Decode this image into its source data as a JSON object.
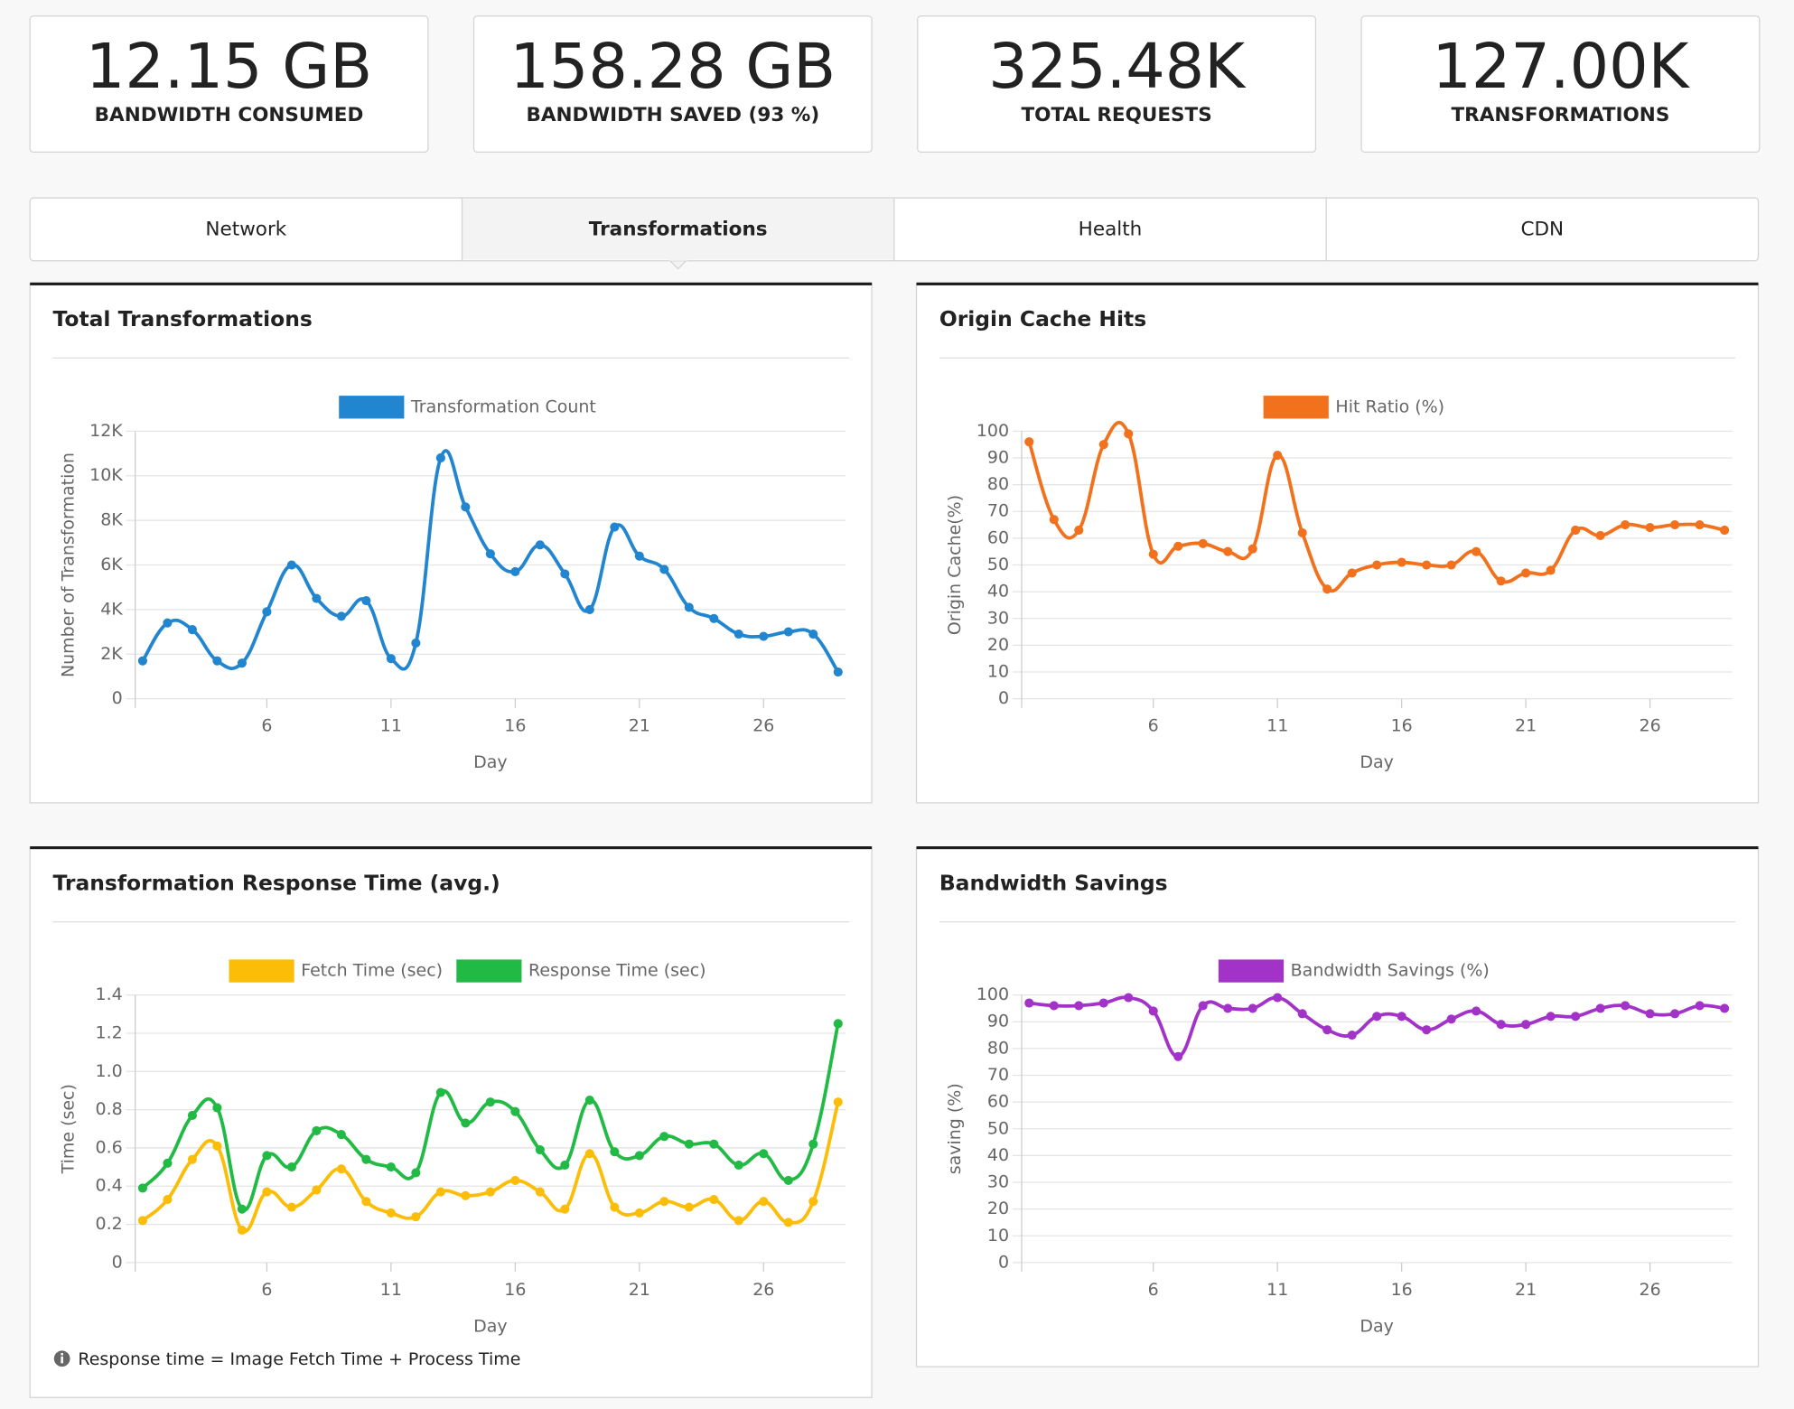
{
  "stats": [
    {
      "value": "12.15 GB",
      "label": "BANDWIDTH CONSUMED"
    },
    {
      "value": "158.28 GB",
      "label": "BANDWIDTH SAVED (93 %)"
    },
    {
      "value": "325.48K",
      "label": "TOTAL REQUESTS"
    },
    {
      "value": "127.00K",
      "label": "TRANSFORMATIONS"
    }
  ],
  "tabs": [
    "Network",
    "Transformations",
    "Health",
    "CDN"
  ],
  "active_tab": 1,
  "chart_data": [
    {
      "type": "line",
      "title": "Total Transformations",
      "x_label": "Day",
      "y_label": "Number of Transformation",
      "x": [
        1,
        2,
        3,
        4,
        5,
        6,
        7,
        8,
        9,
        10,
        11,
        12,
        13,
        14,
        15,
        16,
        17,
        18,
        19,
        20,
        21,
        22,
        23,
        24,
        25,
        26,
        27,
        28,
        29
      ],
      "xlim": [
        0.7,
        29.3
      ],
      "xticks": [
        6,
        11,
        16,
        21,
        26
      ],
      "ylim": [
        0,
        12000
      ],
      "yticks": [
        0,
        {
          "value": 2000,
          "label": "2K"
        },
        {
          "value": 4000,
          "label": "4K"
        },
        {
          "value": 6000,
          "label": "6K"
        },
        {
          "value": 8000,
          "label": "8K"
        },
        {
          "value": 10000,
          "label": "10K"
        },
        {
          "value": 12000,
          "label": "12K"
        }
      ],
      "grid": true,
      "series": [
        {
          "name": "Transformation Count",
          "color": "#2185d0",
          "values": [
            1700,
            3400,
            3100,
            1700,
            1600,
            3900,
            6000,
            4500,
            3700,
            4400,
            1800,
            2500,
            10800,
            8600,
            6500,
            5700,
            6900,
            5600,
            4000,
            7700,
            6400,
            5800,
            4100,
            3600,
            2900,
            2800,
            3000,
            2900,
            1200
          ]
        }
      ]
    },
    {
      "type": "line",
      "title": "Origin Cache Hits",
      "x_label": "Day",
      "y_label": "Origin Cache(%)",
      "x": [
        1,
        2,
        3,
        4,
        5,
        6,
        7,
        8,
        9,
        10,
        11,
        12,
        13,
        14,
        15,
        16,
        17,
        18,
        19,
        20,
        21,
        22,
        23,
        24,
        25,
        26,
        27,
        28,
        29
      ],
      "xlim": [
        0.7,
        29.3
      ],
      "xticks": [
        6,
        11,
        16,
        21,
        26
      ],
      "ylim": [
        0,
        100
      ],
      "yticks": [
        0,
        10,
        20,
        30,
        40,
        50,
        60,
        70,
        80,
        90,
        100
      ],
      "grid": true,
      "series": [
        {
          "name": "Hit Ratio (%)",
          "color": "#f2711c",
          "values": [
            96,
            67,
            63,
            95,
            99,
            54,
            57,
            58,
            55,
            56,
            91,
            62,
            41,
            47,
            50,
            51,
            50,
            50,
            55,
            44,
            47,
            48,
            63,
            61,
            65,
            64,
            65,
            65,
            63
          ]
        }
      ]
    },
    {
      "type": "line",
      "title": "Transformation Response Time (avg.)",
      "x_label": "Day",
      "y_label": "Time (sec)",
      "x": [
        1,
        2,
        3,
        4,
        5,
        6,
        7,
        8,
        9,
        10,
        11,
        12,
        13,
        14,
        15,
        16,
        17,
        18,
        19,
        20,
        21,
        22,
        23,
        24,
        25,
        26,
        27,
        28,
        29
      ],
      "xlim": [
        0.7,
        29.3
      ],
      "xticks": [
        6,
        11,
        16,
        21,
        26
      ],
      "ylim": [
        0,
        1.4
      ],
      "yticks": [
        0,
        0.2,
        0.4,
        0.6,
        0.8,
        {
          "value": 1,
          "label": "1.0"
        },
        1.2,
        1.4
      ],
      "grid": true,
      "series": [
        {
          "name": "Fetch Time (sec)",
          "color": "#fbbd08",
          "values": [
            0.22,
            0.33,
            0.54,
            0.61,
            0.17,
            0.37,
            0.29,
            0.38,
            0.49,
            0.32,
            0.26,
            0.24,
            0.37,
            0.35,
            0.37,
            0.43,
            0.37,
            0.28,
            0.57,
            0.29,
            0.26,
            0.32,
            0.29,
            0.33,
            0.22,
            0.32,
            0.21,
            0.32,
            0.84
          ]
        },
        {
          "name": "Response Time (sec)",
          "color": "#21ba45",
          "values": [
            0.39,
            0.52,
            0.77,
            0.81,
            0.28,
            0.56,
            0.5,
            0.69,
            0.67,
            0.54,
            0.5,
            0.47,
            0.89,
            0.73,
            0.84,
            0.79,
            0.59,
            0.51,
            0.85,
            0.58,
            0.56,
            0.66,
            0.62,
            0.62,
            0.51,
            0.57,
            0.43,
            0.62,
            1.25
          ]
        }
      ]
    },
    {
      "type": "line",
      "title": "Bandwidth Savings",
      "x_label": "Day",
      "y_label": "saving (%)",
      "x": [
        1,
        2,
        3,
        4,
        5,
        6,
        7,
        8,
        9,
        10,
        11,
        12,
        13,
        14,
        15,
        16,
        17,
        18,
        19,
        20,
        21,
        22,
        23,
        24,
        25,
        26,
        27,
        28,
        29
      ],
      "xlim": [
        0.7,
        29.3
      ],
      "xticks": [
        6,
        11,
        16,
        21,
        26
      ],
      "ylim": [
        0,
        100
      ],
      "yticks": [
        0,
        10,
        20,
        30,
        40,
        50,
        60,
        70,
        80,
        90,
        100
      ],
      "grid": true,
      "series": [
        {
          "name": "Bandwidth Savings (%)",
          "color": "#a333c8",
          "values": [
            97,
            96,
            96,
            97,
            99,
            94,
            77,
            96,
            95,
            95,
            99,
            93,
            87,
            85,
            92,
            92,
            87,
            91,
            94,
            89,
            89,
            92,
            92,
            95,
            96,
            93,
            93,
            96,
            95
          ]
        }
      ]
    }
  ],
  "footnote": "Response time = Image Fetch Time + Process Time"
}
